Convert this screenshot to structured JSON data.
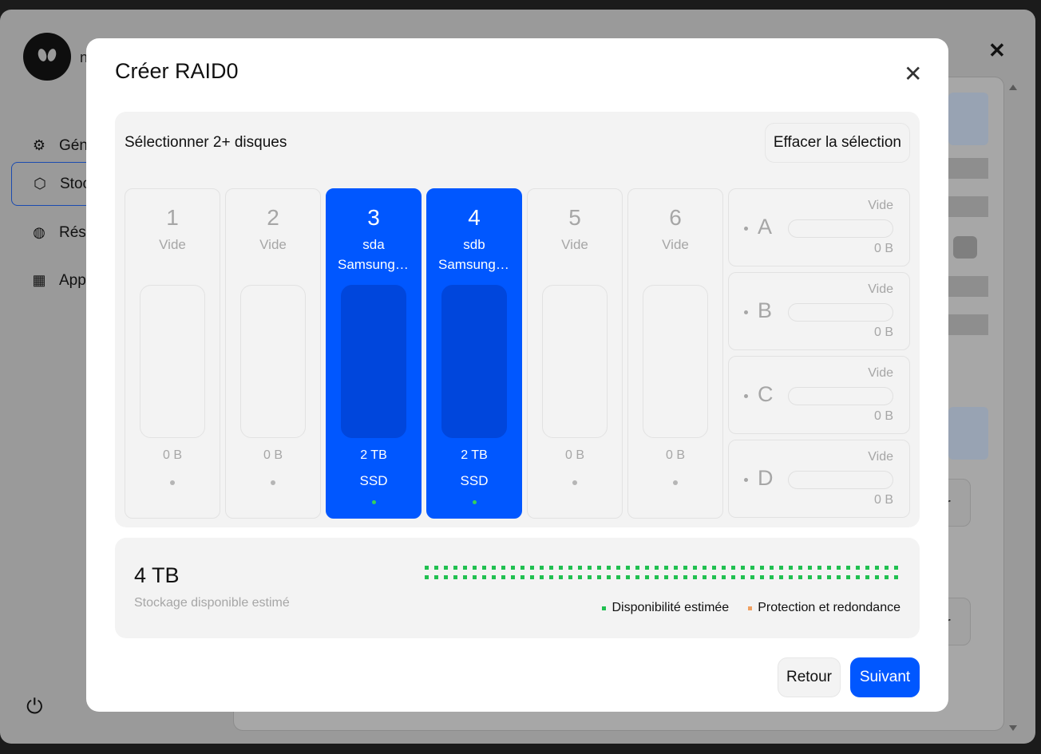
{
  "background_app": {
    "user_initial": "n",
    "nav": [
      {
        "label": "Général",
        "icon": "gear-icon"
      },
      {
        "label": "Stockage",
        "icon": "cube-icon"
      },
      {
        "label": "Réseau",
        "icon": "planet-icon"
      },
      {
        "label": "Applications",
        "icon": "apps-grid-icon"
      }
    ],
    "partial_button_text_1": "er",
    "partial_button_text_2": "er"
  },
  "modal": {
    "title": "Créer RAID0",
    "close_glyph": "✕",
    "select_label": "Sélectionner 2+ disques",
    "clear_label": "Effacer la sélection",
    "bays": [
      {
        "num": "1",
        "status": "Vide",
        "model": "",
        "capacity": "0 B",
        "type": "",
        "selected": false
      },
      {
        "num": "2",
        "status": "Vide",
        "model": "",
        "capacity": "0 B",
        "type": "",
        "selected": false
      },
      {
        "num": "3",
        "status": "sda",
        "model": "Samsung SSD",
        "capacity": "2 TB",
        "type": "SSD",
        "selected": true
      },
      {
        "num": "4",
        "status": "sdb",
        "model": "Samsung SSD",
        "capacity": "2 TB",
        "type": "SSD",
        "selected": true
      },
      {
        "num": "5",
        "status": "Vide",
        "model": "",
        "capacity": "0 B",
        "type": "",
        "selected": false
      },
      {
        "num": "6",
        "status": "Vide",
        "model": "",
        "capacity": "0 B",
        "type": "",
        "selected": false
      }
    ],
    "m2_bays": [
      {
        "letter": "A",
        "status": "Vide",
        "capacity": "0 B"
      },
      {
        "letter": "B",
        "status": "Vide",
        "capacity": "0 B"
      },
      {
        "letter": "C",
        "status": "Vide",
        "capacity": "0 B"
      },
      {
        "letter": "D",
        "status": "Vide",
        "capacity": "0 B"
      }
    ],
    "summary": {
      "value": "4 TB",
      "label": "Stockage disponible estimé",
      "legend_available": "Disponibilité estimée",
      "legend_protection": "Protection et redondance",
      "available_color": "#20c050",
      "protection_color": "#f0a060"
    },
    "back_label": "Retour",
    "next_label": "Suivant"
  },
  "colors": {
    "accent": "#0057ff",
    "selected_slot": "#0046dc",
    "status_green": "#35d05a"
  }
}
